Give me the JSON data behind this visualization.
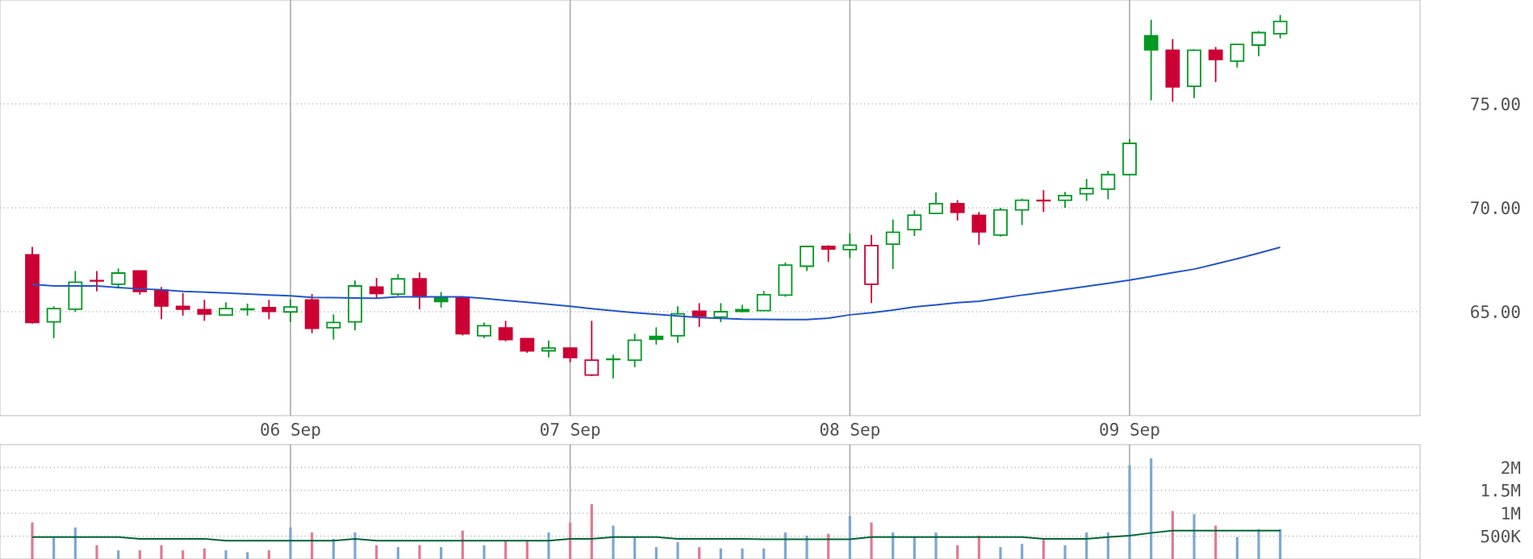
{
  "chart_data": [
    {
      "type": "candlestick",
      "categories": [
        null,
        null,
        null,
        null,
        null,
        null,
        null,
        null,
        null,
        null,
        null,
        null,
        null,
        "06 Sep",
        null,
        null,
        null,
        null,
        null,
        null,
        null,
        null,
        null,
        null,
        null,
        null,
        "07 Sep",
        null,
        null,
        null,
        null,
        null,
        null,
        null,
        null,
        null,
        null,
        null,
        null,
        "08 Sep",
        null,
        null,
        null,
        null,
        null,
        null,
        null,
        null,
        null,
        null,
        null,
        null,
        "09 Sep",
        null,
        null,
        null,
        null,
        null,
        null,
        null,
        null,
        null,
        null,
        null,
        null,
        null
      ],
      "ohlc": [
        null,
        [
          67.74,
          68.12,
          64.43,
          64.48
        ],
        [
          64.51,
          65.26,
          63.73,
          65.15
        ],
        [
          65.12,
          66.96,
          64.99,
          66.42
        ],
        [
          66.5,
          66.96,
          65.98,
          66.48
        ],
        [
          66.32,
          67.08,
          66.19,
          66.86
        ],
        [
          66.96,
          66.96,
          65.82,
          65.98
        ],
        [
          66.03,
          66.19,
          64.64,
          65.28
        ],
        [
          65.26,
          65.9,
          64.81,
          65.12
        ],
        [
          65.1,
          65.57,
          64.56,
          64.89
        ],
        [
          64.84,
          65.46,
          64.81,
          65.15
        ],
        [
          65.1,
          65.39,
          64.81,
          65.13
        ],
        [
          65.2,
          65.57,
          64.64,
          65.02
        ],
        [
          64.99,
          65.6,
          64.51,
          65.23
        ],
        [
          65.57,
          65.85,
          63.97,
          64.2
        ],
        [
          64.23,
          64.87,
          63.66,
          64.48
        ],
        [
          64.51,
          66.5,
          64.11,
          66.24
        ],
        [
          66.19,
          66.63,
          65.65,
          65.88
        ],
        [
          65.85,
          66.81,
          65.77,
          66.58
        ],
        [
          66.58,
          66.89,
          65.12,
          65.72
        ],
        [
          65.67,
          65.95,
          65.2,
          65.49
        ],
        [
          65.69,
          65.69,
          63.86,
          63.94
        ],
        [
          63.84,
          64.48,
          63.73,
          64.33
        ],
        [
          64.22,
          64.56,
          63.58,
          63.66
        ],
        [
          63.71,
          63.71,
          63.02,
          63.12
        ],
        [
          63.12,
          63.61,
          62.8,
          63.25
        ],
        [
          63.25,
          63.27,
          62.57,
          62.8
        ],
        [
          61.95,
          64.56,
          61.9,
          62.67
        ],
        [
          62.7,
          62.93,
          61.79,
          62.72
        ],
        [
          62.67,
          63.94,
          62.33,
          63.63
        ],
        [
          63.81,
          64.25,
          63.42,
          63.68
        ],
        [
          63.84,
          65.26,
          63.5,
          64.9
        ],
        [
          65.02,
          65.41,
          64.27,
          64.77
        ],
        [
          64.74,
          65.41,
          64.5,
          65.0
        ],
        [
          65.1,
          65.33,
          64.97,
          65.02
        ],
        [
          65.05,
          66.0,
          65.05,
          65.82
        ],
        [
          65.8,
          67.37,
          65.72,
          67.24
        ],
        [
          67.19,
          68.17,
          66.96,
          68.14
        ],
        [
          68.14,
          68.2,
          67.4,
          68.02
        ],
        [
          67.99,
          68.77,
          67.58,
          68.2
        ],
        [
          66.32,
          68.69,
          65.42,
          68.18
        ],
        [
          68.25,
          69.44,
          67.06,
          68.82
        ],
        [
          68.95,
          69.88,
          68.64,
          69.65
        ],
        [
          69.73,
          70.74,
          69.73,
          70.2
        ],
        [
          70.2,
          70.37,
          69.39,
          69.78
        ],
        [
          69.64,
          69.8,
          68.22,
          68.84
        ],
        [
          68.69,
          70.0,
          68.61,
          69.9
        ],
        [
          69.9,
          70.44,
          69.17,
          70.36
        ],
        [
          70.36,
          70.85,
          69.8,
          70.34
        ],
        [
          70.36,
          70.77,
          70.0,
          70.59
        ],
        [
          70.67,
          71.39,
          70.33,
          70.93
        ],
        [
          70.9,
          71.78,
          70.41,
          71.6
        ],
        [
          71.6,
          73.31,
          71.6,
          73.1
        ],
        [
          78.28,
          79.05,
          75.17,
          77.6
        ],
        [
          77.58,
          78.12,
          75.1,
          75.82
        ],
        [
          75.85,
          77.63,
          75.28,
          77.58
        ],
        [
          77.58,
          77.74,
          76.05,
          77.14
        ],
        [
          77.06,
          77.89,
          76.75,
          77.86
        ],
        [
          77.83,
          78.51,
          77.3,
          78.43
        ],
        [
          78.38,
          79.28,
          78.15,
          78.97
        ],
        null,
        null,
        null,
        null,
        null,
        null
      ],
      "colors": [
        null,
        "#cc0033",
        "#009922",
        "#009922",
        "#cc0033",
        "#009922",
        "#cc0033",
        "#cc0033",
        "#cc0033",
        "#cc0033",
        "#009922",
        "#009922",
        "#cc0033",
        "#009922",
        "#cc0033",
        "#009922",
        "#009922",
        "#cc0033",
        "#009922",
        "#cc0033",
        "#009922",
        "#cc0033",
        "#009922",
        "#cc0033",
        "#cc0033",
        "#009922",
        "#cc0033",
        "#cc0033",
        "#009922",
        "#009922",
        "#009922",
        "#009922",
        "#cc0033",
        "#009922",
        "#009922",
        "#009922",
        "#009922",
        "#009922",
        "#cc0033",
        "#009922",
        "#cc0033",
        "#009922",
        "#009922",
        "#009922",
        "#cc0033",
        "#cc0033",
        "#009922",
        "#009922",
        "#cc0033",
        "#009922",
        "#009922",
        "#009922",
        "#009922",
        "#009922",
        "#cc0033",
        "#009922",
        "#cc0033",
        "#009922",
        "#009922",
        "#009922",
        null,
        null,
        null,
        null,
        null,
        null
      ],
      "series": [
        {
          "type": "line",
          "color": "#2255cc",
          "values": [
            null,
            66.32,
            66.24,
            66.24,
            66.24,
            66.16,
            66.1,
            66.06,
            65.98,
            65.94,
            65.9,
            65.85,
            65.8,
            65.77,
            65.69,
            65.68,
            65.66,
            65.65,
            65.72,
            65.72,
            65.72,
            65.72,
            65.64,
            65.54,
            65.46,
            65.36,
            65.26,
            65.15,
            65.05,
            64.95,
            64.87,
            64.8,
            64.72,
            64.68,
            64.64,
            64.63,
            64.62,
            64.62,
            64.69,
            64.85,
            64.95,
            65.08,
            65.23,
            65.33,
            65.44,
            65.5,
            65.65,
            65.8,
            65.93,
            66.08,
            66.22,
            66.37,
            66.52,
            66.7,
            66.88,
            67.05,
            67.3,
            67.55,
            67.82,
            68.1,
            null,
            null,
            null,
            null,
            null,
            null
          ]
        }
      ],
      "ylim": [
        60,
        80
      ],
      "yticks": [
        {
          "value": 65,
          "label": "65.00"
        },
        {
          "value": 70,
          "label": "70.00"
        },
        {
          "value": 75,
          "label": "75.00"
        }
      ],
      "grid": true
    },
    {
      "type": "bar",
      "categories": [
        null,
        null,
        null,
        null,
        null,
        null,
        null,
        null,
        null,
        null,
        null,
        null,
        null,
        null,
        null,
        null,
        null,
        null,
        null,
        null,
        null,
        null,
        null,
        null,
        null,
        null,
        null,
        null,
        null,
        null,
        null,
        null,
        null,
        null,
        null,
        null,
        null,
        null,
        null,
        null,
        null,
        null,
        null,
        null,
        null,
        null,
        null,
        null,
        null,
        null,
        null,
        null,
        null,
        null,
        null,
        null,
        null,
        null,
        null,
        null,
        null,
        null,
        null,
        null,
        null,
        null
      ],
      "series": [
        {
          "type": "bar",
          "values": [
            null,
            800000,
            460000,
            690000,
            300000,
            190000,
            190000,
            300000,
            190000,
            230000,
            190000,
            150000,
            190000,
            690000,
            580000,
            440000,
            580000,
            300000,
            260000,
            300000,
            260000,
            620000,
            300000,
            400000,
            400000,
            580000,
            800000,
            1200000,
            730000,
            480000,
            260000,
            370000,
            260000,
            230000,
            230000,
            230000,
            580000,
            510000,
            550000,
            940000,
            800000,
            580000,
            480000,
            580000,
            300000,
            510000,
            260000,
            330000,
            420000,
            300000,
            580000,
            580000,
            2050000,
            2200000,
            1050000,
            980000,
            730000,
            480000,
            650000,
            650000,
            null,
            null,
            null,
            null,
            null,
            null
          ],
          "colors": [
            null,
            "#e07a93",
            "#7ba7d4",
            "#7ba7d4",
            "#e07a93",
            "#7ba7d4",
            "#e07a93",
            "#e07a93",
            "#e07a93",
            "#e07a93",
            "#7ba7d4",
            "#7ba7d4",
            "#e07a93",
            "#7ba7d4",
            "#e07a93",
            "#7ba7d4",
            "#7ba7d4",
            "#e07a93",
            "#7ba7d4",
            "#e07a93",
            "#7ba7d4",
            "#e07a93",
            "#7ba7d4",
            "#e07a93",
            "#e07a93",
            "#7ba7d4",
            "#e07a93",
            "#e07a93",
            "#7ba7d4",
            "#7ba7d4",
            "#7ba7d4",
            "#7ba7d4",
            "#e07a93",
            "#7ba7d4",
            "#7ba7d4",
            "#7ba7d4",
            "#7ba7d4",
            "#7ba7d4",
            "#e07a93",
            "#7ba7d4",
            "#e07a93",
            "#7ba7d4",
            "#7ba7d4",
            "#7ba7d4",
            "#e07a93",
            "#e07a93",
            "#7ba7d4",
            "#7ba7d4",
            "#e07a93",
            "#7ba7d4",
            "#7ba7d4",
            "#7ba7d4",
            "#7ba7d4",
            "#7ba7d4",
            "#e07a93",
            "#7ba7d4",
            "#e07a93",
            "#7ba7d4",
            "#7ba7d4",
            "#7ba7d4",
            null,
            null,
            null,
            null,
            null,
            null
          ]
        },
        {
          "type": "line",
          "color": "#006633",
          "values": [
            null,
            480000,
            480000,
            480000,
            480000,
            480000,
            440000,
            440000,
            440000,
            440000,
            400000,
            400000,
            400000,
            400000,
            400000,
            400000,
            440000,
            400000,
            400000,
            400000,
            400000,
            400000,
            400000,
            400000,
            400000,
            400000,
            440000,
            440000,
            480000,
            480000,
            480000,
            440000,
            440000,
            440000,
            440000,
            430000,
            430000,
            430000,
            430000,
            430000,
            480000,
            480000,
            480000,
            480000,
            480000,
            480000,
            480000,
            480000,
            440000,
            440000,
            440000,
            480000,
            510000,
            570000,
            620000,
            620000,
            620000,
            620000,
            620000,
            620000,
            null,
            null,
            null,
            null,
            null,
            null
          ]
        }
      ],
      "ylim": [
        0,
        2500000
      ],
      "yticks": [
        {
          "value": 500000,
          "label": "500K"
        },
        {
          "value": 1000000,
          "label": "1M"
        },
        {
          "value": 1500000,
          "label": "1.5M"
        },
        {
          "value": 2000000,
          "label": "2M"
        }
      ],
      "tick_labels": "y",
      "grid": "y"
    }
  ]
}
